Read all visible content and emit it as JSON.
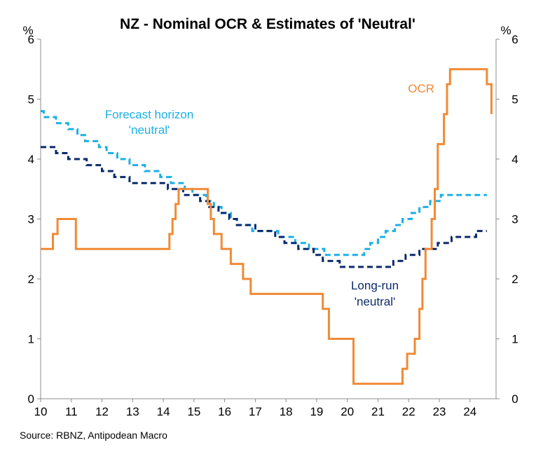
{
  "chart_data": {
    "type": "line",
    "title": "NZ - Nominal OCR & Estimates of 'Neutral'",
    "source": "Source: RBNZ, Antipodean Macro",
    "left_unit": "%",
    "right_unit": "%",
    "xlim": [
      10,
      24.85
    ],
    "ylim": [
      0,
      6
    ],
    "x_ticks": [
      "10",
      "11",
      "12",
      "13",
      "14",
      "15",
      "16",
      "17",
      "18",
      "19",
      "20",
      "21",
      "22",
      "23",
      "24"
    ],
    "y_ticks": [
      "0",
      "1",
      "2",
      "3",
      "4",
      "5",
      "6"
    ],
    "annotations": {
      "ocr": "OCR",
      "forecast_line1": "Forecast horizon",
      "forecast_line2": "'neutral'",
      "longrun_line1": "Long-run",
      "longrun_line2": "'neutral'"
    },
    "colors": {
      "ocr": "#F08A36",
      "forecast": "#1CB0E6",
      "longrun": "#0C2A6B"
    },
    "series": [
      {
        "name": "OCR",
        "style": "step",
        "points": [
          [
            10.0,
            2.5
          ],
          [
            10.4,
            2.5
          ],
          [
            10.4,
            2.75
          ],
          [
            10.55,
            2.75
          ],
          [
            10.55,
            3.0
          ],
          [
            11.15,
            3.0
          ],
          [
            11.15,
            2.5
          ],
          [
            14.2,
            2.5
          ],
          [
            14.2,
            2.75
          ],
          [
            14.3,
            2.75
          ],
          [
            14.3,
            3.0
          ],
          [
            14.4,
            3.0
          ],
          [
            14.4,
            3.25
          ],
          [
            14.5,
            3.25
          ],
          [
            14.5,
            3.5
          ],
          [
            15.45,
            3.5
          ],
          [
            15.45,
            3.25
          ],
          [
            15.55,
            3.25
          ],
          [
            15.55,
            3.0
          ],
          [
            15.65,
            3.0
          ],
          [
            15.65,
            2.75
          ],
          [
            15.9,
            2.75
          ],
          [
            15.9,
            2.5
          ],
          [
            16.2,
            2.5
          ],
          [
            16.2,
            2.25
          ],
          [
            16.6,
            2.25
          ],
          [
            16.6,
            2.0
          ],
          [
            16.85,
            2.0
          ],
          [
            16.85,
            1.75
          ],
          [
            19.2,
            1.75
          ],
          [
            19.2,
            1.5
          ],
          [
            19.4,
            1.5
          ],
          [
            19.4,
            1.0
          ],
          [
            20.2,
            1.0
          ],
          [
            20.2,
            0.25
          ],
          [
            21.8,
            0.25
          ],
          [
            21.8,
            0.5
          ],
          [
            21.95,
            0.5
          ],
          [
            21.95,
            0.75
          ],
          [
            22.2,
            0.75
          ],
          [
            22.2,
            1.0
          ],
          [
            22.35,
            1.0
          ],
          [
            22.35,
            1.5
          ],
          [
            22.45,
            1.5
          ],
          [
            22.45,
            2.0
          ],
          [
            22.55,
            2.0
          ],
          [
            22.55,
            2.5
          ],
          [
            22.75,
            2.5
          ],
          [
            22.75,
            3.0
          ],
          [
            22.85,
            3.0
          ],
          [
            22.85,
            3.5
          ],
          [
            22.95,
            3.5
          ],
          [
            22.95,
            4.25
          ],
          [
            23.15,
            4.25
          ],
          [
            23.15,
            4.75
          ],
          [
            23.25,
            4.75
          ],
          [
            23.25,
            5.25
          ],
          [
            23.35,
            5.25
          ],
          [
            23.35,
            5.5
          ],
          [
            24.55,
            5.5
          ],
          [
            24.55,
            5.25
          ],
          [
            24.7,
            5.25
          ],
          [
            24.7,
            4.75
          ]
        ]
      },
      {
        "name": "Forecast horizon 'neutral'",
        "style": "dashed-step",
        "points": [
          [
            10.0,
            4.8
          ],
          [
            10.1,
            4.8
          ],
          [
            10.1,
            4.7
          ],
          [
            10.5,
            4.7
          ],
          [
            10.5,
            4.6
          ],
          [
            10.9,
            4.6
          ],
          [
            10.9,
            4.5
          ],
          [
            11.2,
            4.5
          ],
          [
            11.2,
            4.4
          ],
          [
            11.45,
            4.4
          ],
          [
            11.45,
            4.3
          ],
          [
            11.9,
            4.3
          ],
          [
            11.9,
            4.2
          ],
          [
            12.15,
            4.2
          ],
          [
            12.15,
            4.1
          ],
          [
            12.5,
            4.1
          ],
          [
            12.5,
            4.0
          ],
          [
            12.9,
            4.0
          ],
          [
            12.9,
            3.9
          ],
          [
            13.4,
            3.9
          ],
          [
            13.4,
            3.8
          ],
          [
            13.9,
            3.8
          ],
          [
            13.9,
            3.7
          ],
          [
            14.25,
            3.7
          ],
          [
            14.25,
            3.6
          ],
          [
            14.7,
            3.6
          ],
          [
            14.7,
            3.5
          ],
          [
            14.95,
            3.5
          ],
          [
            14.95,
            3.4
          ],
          [
            15.4,
            3.4
          ],
          [
            15.4,
            3.3
          ],
          [
            15.65,
            3.3
          ],
          [
            15.65,
            3.2
          ],
          [
            15.9,
            3.2
          ],
          [
            15.9,
            3.1
          ],
          [
            16.2,
            3.1
          ],
          [
            16.2,
            3.0
          ],
          [
            16.4,
            3.0
          ],
          [
            16.4,
            2.9
          ],
          [
            16.9,
            2.9
          ],
          [
            16.9,
            2.8
          ],
          [
            17.75,
            2.8
          ],
          [
            17.75,
            2.7
          ],
          [
            18.3,
            2.7
          ],
          [
            18.3,
            2.6
          ],
          [
            18.75,
            2.6
          ],
          [
            18.75,
            2.5
          ],
          [
            19.25,
            2.5
          ],
          [
            19.25,
            2.4
          ],
          [
            20.55,
            2.4
          ],
          [
            20.55,
            2.5
          ],
          [
            20.75,
            2.5
          ],
          [
            20.75,
            2.6
          ],
          [
            21.0,
            2.6
          ],
          [
            21.0,
            2.7
          ],
          [
            21.25,
            2.7
          ],
          [
            21.25,
            2.8
          ],
          [
            21.55,
            2.8
          ],
          [
            21.55,
            2.9
          ],
          [
            21.8,
            2.9
          ],
          [
            21.8,
            3.0
          ],
          [
            22.1,
            3.0
          ],
          [
            22.1,
            3.1
          ],
          [
            22.35,
            3.1
          ],
          [
            22.35,
            3.2
          ],
          [
            22.7,
            3.2
          ],
          [
            22.7,
            3.3
          ],
          [
            23.05,
            3.3
          ],
          [
            23.05,
            3.4
          ],
          [
            24.55,
            3.4
          ]
        ]
      },
      {
        "name": "Long-run 'neutral'",
        "style": "dashed-step",
        "points": [
          [
            10.0,
            4.2
          ],
          [
            10.5,
            4.2
          ],
          [
            10.5,
            4.1
          ],
          [
            10.9,
            4.1
          ],
          [
            10.9,
            4.0
          ],
          [
            11.5,
            4.0
          ],
          [
            11.5,
            3.9
          ],
          [
            12.0,
            3.9
          ],
          [
            12.0,
            3.8
          ],
          [
            12.4,
            3.8
          ],
          [
            12.4,
            3.7
          ],
          [
            12.9,
            3.7
          ],
          [
            12.9,
            3.6
          ],
          [
            14.15,
            3.6
          ],
          [
            14.15,
            3.5
          ],
          [
            14.65,
            3.5
          ],
          [
            14.65,
            3.4
          ],
          [
            15.2,
            3.4
          ],
          [
            15.2,
            3.3
          ],
          [
            15.5,
            3.3
          ],
          [
            15.5,
            3.2
          ],
          [
            15.8,
            3.2
          ],
          [
            15.8,
            3.1
          ],
          [
            16.15,
            3.1
          ],
          [
            16.15,
            3.0
          ],
          [
            16.4,
            3.0
          ],
          [
            16.4,
            2.9
          ],
          [
            17.0,
            2.9
          ],
          [
            17.0,
            2.8
          ],
          [
            17.65,
            2.8
          ],
          [
            17.65,
            2.7
          ],
          [
            17.95,
            2.7
          ],
          [
            17.95,
            2.6
          ],
          [
            18.4,
            2.6
          ],
          [
            18.4,
            2.5
          ],
          [
            18.9,
            2.5
          ],
          [
            18.9,
            2.4
          ],
          [
            19.2,
            2.4
          ],
          [
            19.2,
            2.3
          ],
          [
            19.75,
            2.3
          ],
          [
            19.75,
            2.2
          ],
          [
            21.5,
            2.2
          ],
          [
            21.5,
            2.3
          ],
          [
            21.9,
            2.3
          ],
          [
            21.9,
            2.4
          ],
          [
            22.35,
            2.4
          ],
          [
            22.35,
            2.5
          ],
          [
            22.95,
            2.5
          ],
          [
            22.95,
            2.6
          ],
          [
            23.4,
            2.6
          ],
          [
            23.4,
            2.7
          ],
          [
            24.2,
            2.7
          ],
          [
            24.2,
            2.8
          ],
          [
            24.55,
            2.8
          ]
        ]
      }
    ]
  }
}
